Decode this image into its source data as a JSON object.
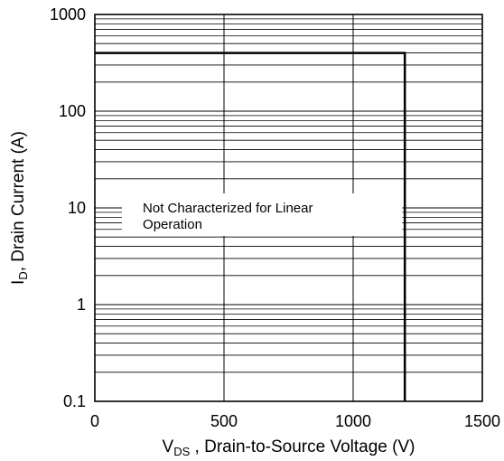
{
  "chart_data": {
    "type": "line",
    "xlabel": {
      "main": "V",
      "sub": "DS",
      "rest": " , Drain-to-Source Voltage (V)"
    },
    "ylabel": {
      "main": "I",
      "sub": "D",
      "rest": ", Drain Current (A)"
    },
    "xlim": [
      0,
      1500
    ],
    "ylim": [
      0.1,
      1000
    ],
    "yscale": "log",
    "xticks": [
      0,
      500,
      1000,
      1500
    ],
    "xtick_labels": [
      "0",
      "500",
      "1000",
      "1500"
    ],
    "yticks": [
      0.1,
      1,
      10,
      100,
      1000
    ],
    "ytick_labels": [
      "0.1",
      "1",
      "10",
      "100",
      "1000"
    ],
    "grid": true,
    "series": [
      {
        "x": [
          0,
          1200,
          1200
        ],
        "y": [
          400,
          400,
          0.1
        ]
      }
    ],
    "annotation": {
      "lines": [
        "Not Characterized for Linear",
        "Operation"
      ],
      "x": 175,
      "y": 10
    }
  }
}
